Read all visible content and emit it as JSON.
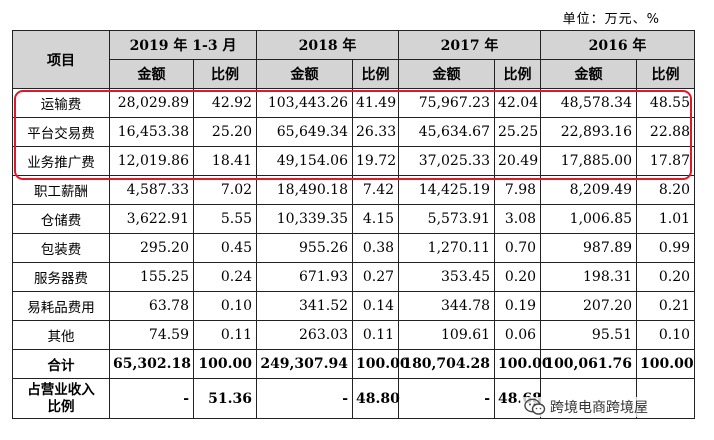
{
  "unit_label": "单位：万元、%",
  "header": {
    "item": "项目",
    "years": [
      "2019 年 1-3 月",
      "2018 年",
      "2017 年",
      "2016 年"
    ],
    "amount": "金额",
    "ratio": "比例"
  },
  "rows": [
    {
      "label": "运输费",
      "values": [
        "28,029.89",
        "42.92",
        "103,443.26",
        "41.49",
        "75,967.23",
        "42.04",
        "48,578.34",
        "48.55"
      ]
    },
    {
      "label": "平台交易费",
      "values": [
        "16,453.38",
        "25.20",
        "65,649.34",
        "26.33",
        "45,634.67",
        "25.25",
        "22,893.16",
        "22.88"
      ]
    },
    {
      "label": "业务推广费",
      "values": [
        "12,019.86",
        "18.41",
        "49,154.06",
        "19.72",
        "37,025.33",
        "20.49",
        "17,885.00",
        "17.87"
      ]
    },
    {
      "label": "职工薪酬",
      "values": [
        "4,587.33",
        "7.02",
        "18,490.18",
        "7.42",
        "14,425.19",
        "7.98",
        "8,209.49",
        "8.20"
      ]
    },
    {
      "label": "仓储费",
      "values": [
        "3,622.91",
        "5.55",
        "10,339.35",
        "4.15",
        "5,573.91",
        "3.08",
        "1,006.85",
        "1.01"
      ]
    },
    {
      "label": "包装费",
      "values": [
        "295.20",
        "0.45",
        "955.26",
        "0.38",
        "1,270.11",
        "0.70",
        "987.89",
        "0.99"
      ]
    },
    {
      "label": "服务器费",
      "values": [
        "155.25",
        "0.24",
        "671.93",
        "0.27",
        "353.45",
        "0.20",
        "198.31",
        "0.20"
      ]
    },
    {
      "label": "易耗品费用",
      "values": [
        "63.78",
        "0.10",
        "341.52",
        "0.14",
        "344.78",
        "0.19",
        "207.20",
        "0.21"
      ]
    },
    {
      "label": "其他",
      "values": [
        "74.59",
        "0.11",
        "263.03",
        "0.11",
        "109.61",
        "0.06",
        "95.51",
        "0.10"
      ]
    }
  ],
  "total": {
    "label": "合计",
    "values": [
      "65,302.18",
      "100.00",
      "249,307.94",
      "100.00",
      "180,704.28",
      "100.00",
      "100,061.76",
      "100.00"
    ]
  },
  "revenue_share": {
    "label": "占营业收入比例",
    "label_line1": "占营业收入",
    "label_line2": "比例",
    "values": [
      "-",
      "51.36",
      "-",
      "48.80",
      "-",
      "48.68",
      "",
      ""
    ]
  },
  "watermark": {
    "icon": "wechat-icon",
    "text": "跨境电商跨境屋"
  },
  "colors": {
    "header_bg": "#d4d4d4",
    "highlight": "#e0192a",
    "border": "#222222"
  }
}
